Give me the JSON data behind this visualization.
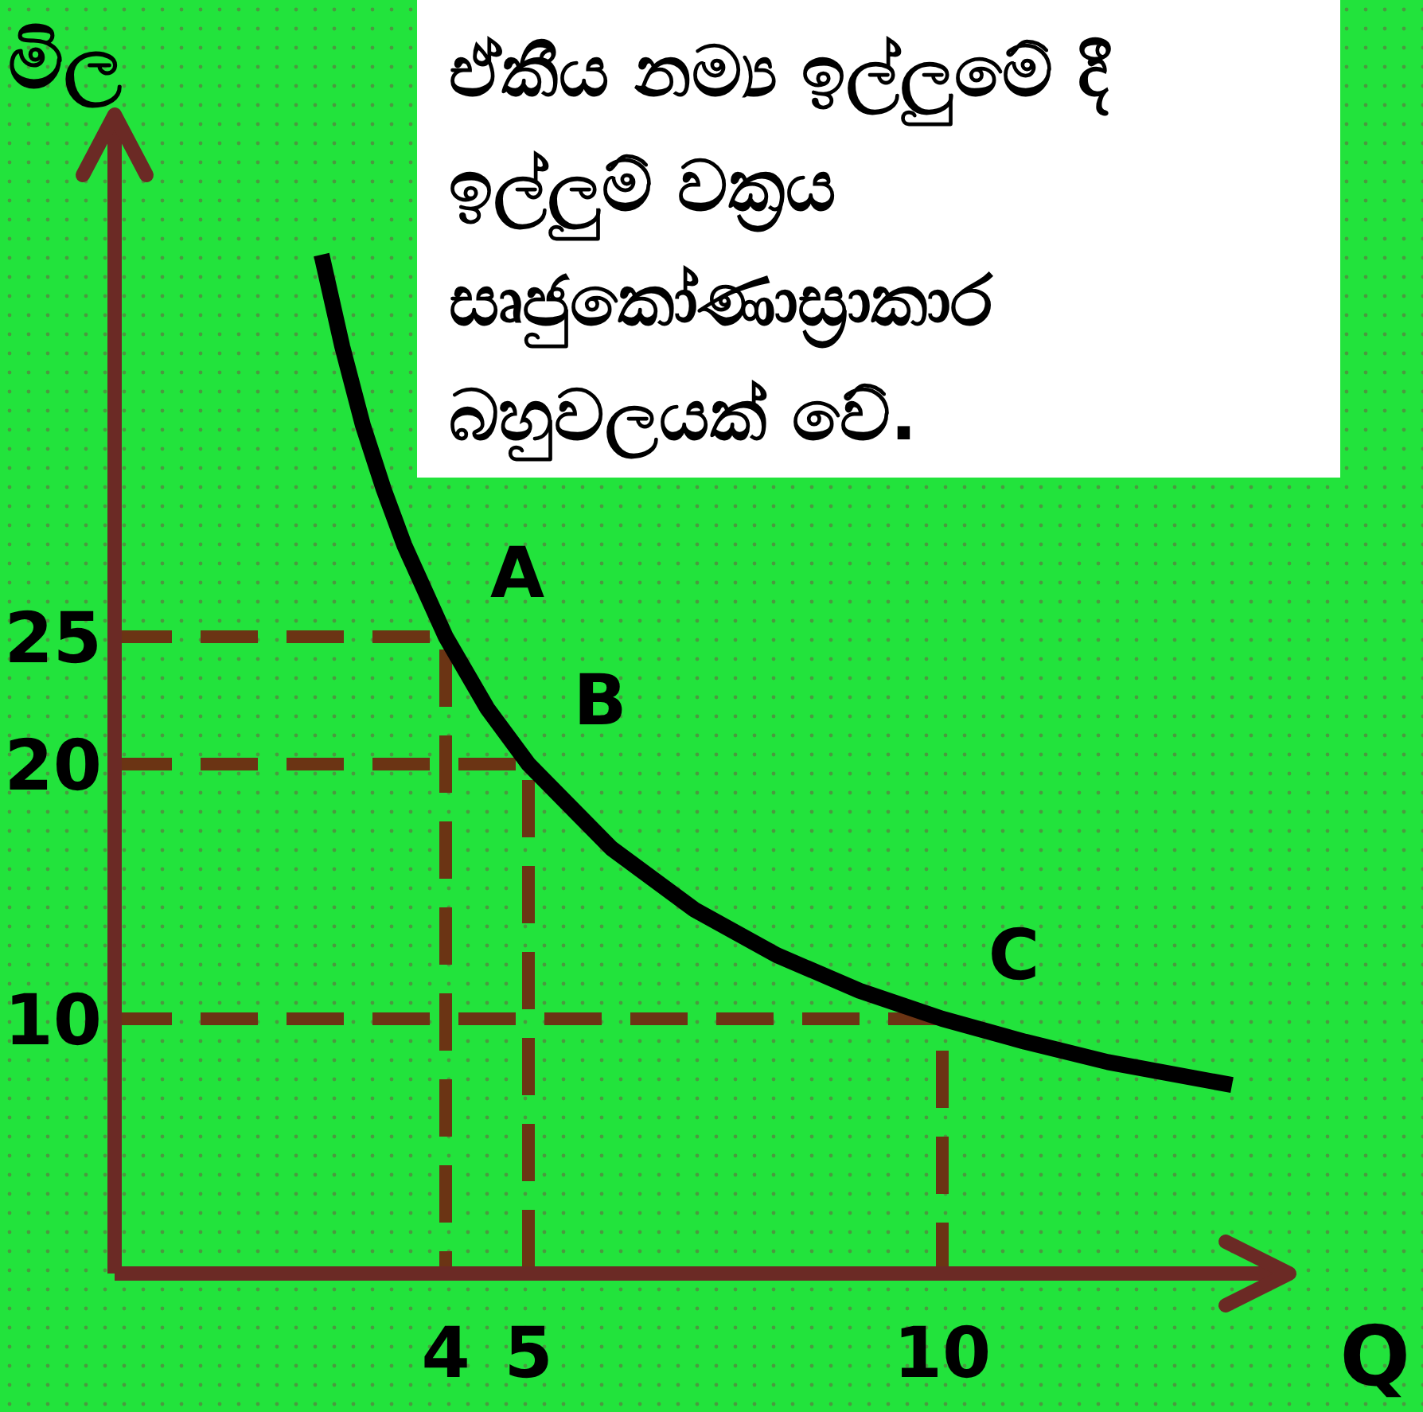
{
  "chart_data": {
    "type": "line",
    "title": "ඒකීය නම්‍ය ඉල්ලුමේ දී ඉල්ලුම් වක්‍රය සෘජුකෝණාස්‍රාකාර බහුවලයක් වේ.",
    "xlabel": "Q",
    "ylabel": "මිල",
    "xlim": [
      0,
      14
    ],
    "ylim": [
      0,
      45
    ],
    "xticks": [
      4,
      5,
      10
    ],
    "yticks": [
      10,
      20,
      25
    ],
    "grid": false,
    "series": [
      {
        "type": "line",
        "color": "#000000",
        "line_style": "solid",
        "x": [
          2.5,
          2.75,
          3,
          3.25,
          3.5,
          4,
          4.5,
          5,
          6,
          7,
          8,
          9,
          10,
          11,
          12,
          13.5
        ],
        "values": [
          40,
          36.4,
          33.3,
          30.8,
          28.6,
          25,
          22.2,
          20,
          16.7,
          14.3,
          12.5,
          11.1,
          10,
          9.1,
          8.3,
          7.4
        ]
      },
      {
        "type": "line",
        "color": "#6b3414",
        "line_style": "dashed",
        "x": [
          0,
          4,
          4
        ],
        "values": [
          25,
          25,
          0
        ]
      },
      {
        "type": "line",
        "color": "#6b3414",
        "line_style": "dashed",
        "x": [
          0,
          5,
          5
        ],
        "values": [
          20,
          20,
          0
        ]
      },
      {
        "type": "line",
        "color": "#6b3414",
        "line_style": "dashed",
        "x": [
          0,
          10,
          10
        ],
        "values": [
          10,
          10,
          0
        ]
      }
    ],
    "annotations": [
      {
        "text": "A",
        "x": 4,
        "y": 25
      },
      {
        "text": "B",
        "x": 5,
        "y": 20
      },
      {
        "text": "C",
        "x": 10,
        "y": 10
      }
    ]
  }
}
